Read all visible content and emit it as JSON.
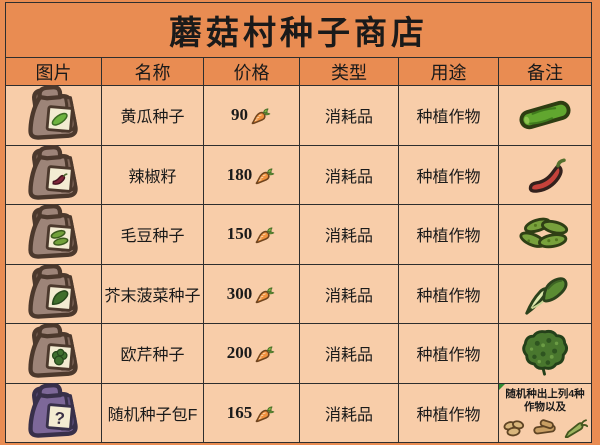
{
  "title": "蘑菇村种子商店",
  "columns": [
    "图片",
    "名称",
    "价格",
    "类型",
    "用途",
    "备注"
  ],
  "currency_icon": "carrot-icon",
  "colors": {
    "background_orange": "#e98c52",
    "row_peach": "#f8cda9",
    "grid_border": "#2e2e2e",
    "text": "#1a1a1a",
    "carrot_orange": "#f0913e",
    "bag_brown": "#9d8478",
    "bag_purple": "#7d6899",
    "label_cream": "#f3ecd2"
  },
  "rows": [
    {
      "name": "黄瓜种子",
      "price": "90",
      "type": "消耗品",
      "use": "种植作物",
      "bag_icon": "seed-bag-cucumber-icon",
      "note_icon": "cucumber-icon"
    },
    {
      "name": "辣椒籽",
      "price": "180",
      "type": "消耗品",
      "use": "种植作物",
      "bag_icon": "seed-bag-chili-icon",
      "note_icon": "chili-icon"
    },
    {
      "name": "毛豆种子",
      "price": "150",
      "type": "消耗品",
      "use": "种植作物",
      "bag_icon": "seed-bag-edamame-icon",
      "note_icon": "edamame-icon"
    },
    {
      "name": "芥末菠菜种子",
      "price": "300",
      "type": "消耗品",
      "use": "种植作物",
      "bag_icon": "seed-bag-mustard-spinach-icon",
      "note_icon": "mustard-spinach-icon"
    },
    {
      "name": "欧芹种子",
      "price": "200",
      "type": "消耗品",
      "use": "种植作物",
      "bag_icon": "seed-bag-parsley-icon",
      "note_icon": "parsley-icon"
    },
    {
      "name": "随机种子包F",
      "price": "165",
      "type": "消耗品",
      "use": "种植作物",
      "bag_icon": "seed-bag-random-icon",
      "note": {
        "lines": [
          "随机种出上列4种",
          "作物以及"
        ],
        "icons": [
          "peanut-icon",
          "ginger-icon",
          "wasabi-icon"
        ]
      }
    }
  ]
}
